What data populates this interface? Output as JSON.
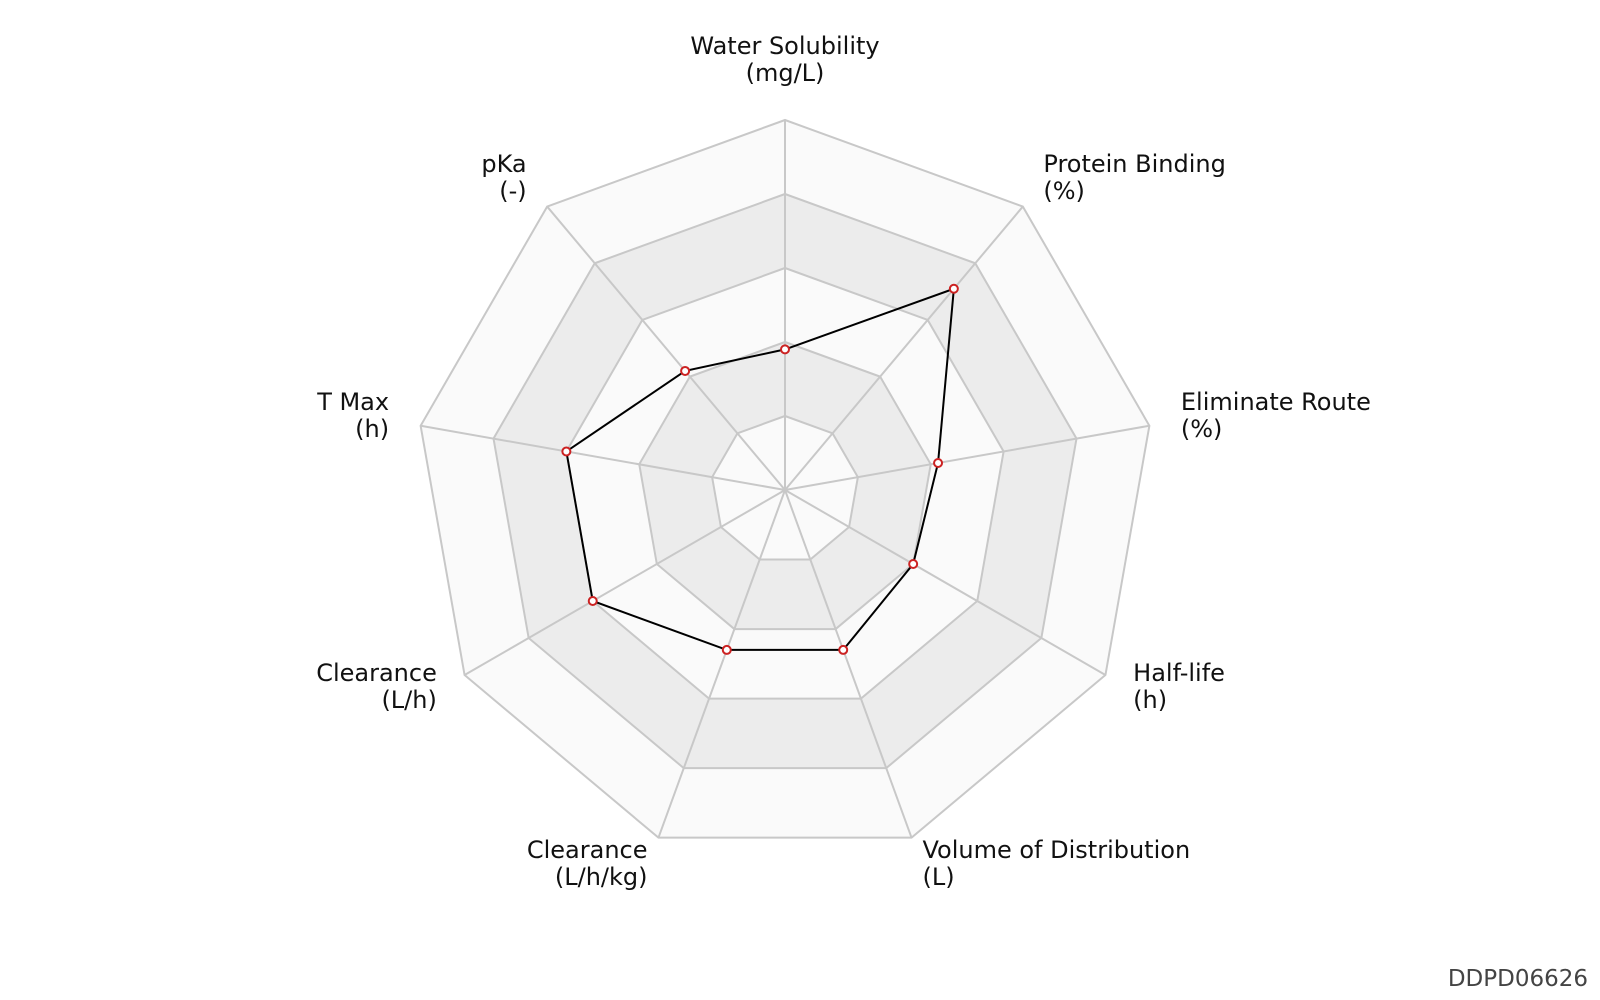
{
  "chart_data": {
    "type": "radar",
    "axes": [
      {
        "label": "Water Solubility",
        "unit": "(mg/L)",
        "value": 0.38
      },
      {
        "label": "Protein Binding",
        "unit": "(%)",
        "value": 0.71
      },
      {
        "label": "Eliminate Route",
        "unit": "(%)",
        "value": 0.42
      },
      {
        "label": "Half-life",
        "unit": "(h)",
        "value": 0.4
      },
      {
        "label": "Volume of Distribution",
        "unit": "(L)",
        "value": 0.46
      },
      {
        "label": "Clearance",
        "unit": "(L/h/kg)",
        "value": 0.46
      },
      {
        "label": "Clearance",
        "unit": "(L/h)",
        "value": 0.6
      },
      {
        "label": "T Max",
        "unit": "(h)",
        "value": 0.6
      },
      {
        "label": "pKa",
        "unit": "(-)",
        "value": 0.42
      }
    ],
    "rings": 5,
    "range": [
      0,
      1
    ],
    "grid": true,
    "colors": {
      "line": "#000000",
      "marker_edge": "#cc2222",
      "marker_fill": "#ffffff",
      "band_light": "#fafafa",
      "band_dark": "#ececec",
      "grid": "#c8c8c8"
    }
  },
  "watermark": "DDPD06626"
}
